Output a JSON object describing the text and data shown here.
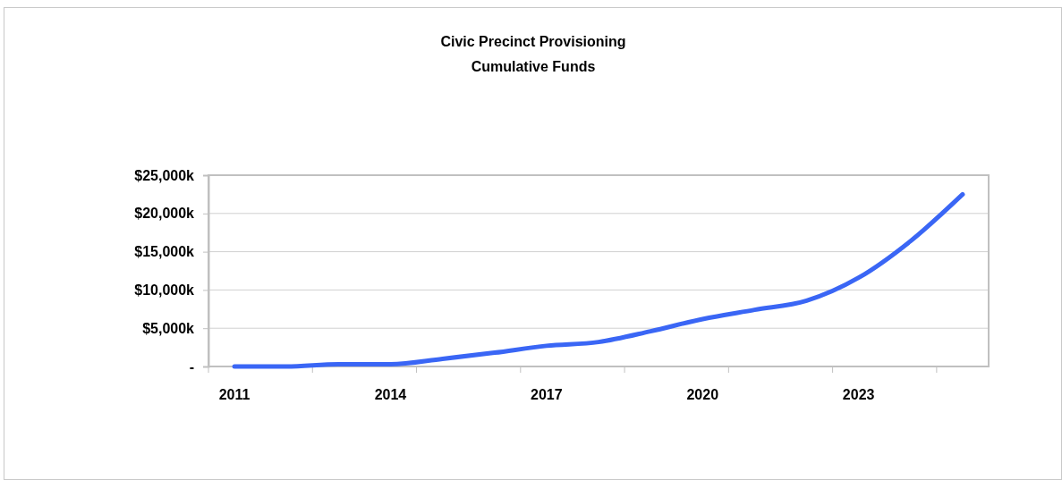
{
  "chart_data": {
    "type": "line",
    "title": "Civic Precinct Provisioning",
    "subtitle": "Cumulative Funds",
    "categories": [
      "2011",
      null,
      null,
      "2014",
      null,
      null,
      "2017",
      null,
      null,
      "2020",
      null,
      null,
      "2023",
      null,
      null
    ],
    "series": [
      {
        "color": "#3a66f5",
        "values": [
          0,
          0,
          300,
          300,
          1000,
          1800,
          2700,
          3200,
          4600,
          6200,
          7400,
          8600,
          11600,
          16400,
          22500
        ]
      }
    ],
    "ylim": [
      0,
      25000
    ],
    "yticks": [
      {
        "value": 0,
        "label": "-"
      },
      {
        "value": 5000,
        "label": "$5,000k"
      },
      {
        "value": 10000,
        "label": "$10,000k"
      },
      {
        "value": 15000,
        "label": "$15,000k"
      },
      {
        "value": 20000,
        "label": "$20,000k"
      },
      {
        "value": 25000,
        "label": "$25,000k"
      }
    ],
    "grid": "y",
    "marker": "none",
    "line_style": "solid"
  }
}
